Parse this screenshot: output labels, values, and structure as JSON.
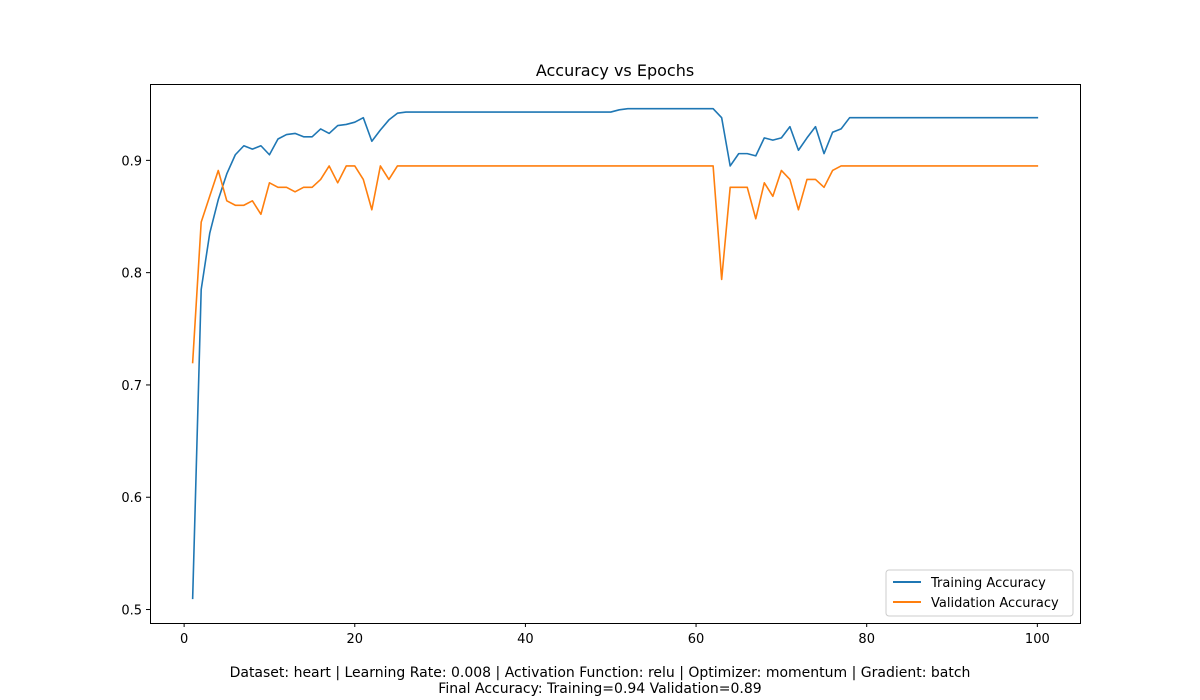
{
  "caption": {
    "line1": "Dataset: heart | Learning Rate: 0.008 | Activation Function: relu | Optimizer: momentum | Gradient: batch",
    "line2": "Final Accuracy: Training=0.94 Validation=0.89"
  },
  "chart_data": {
    "type": "line",
    "title": "Accuracy vs Epochs",
    "xlabel": "",
    "ylabel": "",
    "xlim": [
      -4,
      105
    ],
    "ylim": [
      0.488,
      0.968
    ],
    "xticks": [
      0,
      20,
      40,
      60,
      80,
      100
    ],
    "yticks": [
      0.5,
      0.6,
      0.7,
      0.8,
      0.9
    ],
    "grid": false,
    "legend_position": "lower-right",
    "x": [
      1,
      2,
      3,
      4,
      5,
      6,
      7,
      8,
      9,
      10,
      11,
      12,
      13,
      14,
      15,
      16,
      17,
      18,
      19,
      20,
      21,
      22,
      23,
      24,
      25,
      26,
      27,
      28,
      29,
      30,
      31,
      32,
      33,
      34,
      35,
      36,
      37,
      38,
      39,
      40,
      41,
      42,
      43,
      44,
      45,
      46,
      47,
      48,
      49,
      50,
      51,
      52,
      53,
      54,
      55,
      56,
      57,
      58,
      59,
      60,
      61,
      62,
      63,
      64,
      65,
      66,
      67,
      68,
      69,
      70,
      71,
      72,
      73,
      74,
      75,
      76,
      77,
      78,
      79,
      80,
      81,
      82,
      83,
      84,
      85,
      86,
      87,
      88,
      89,
      90,
      91,
      92,
      93,
      94,
      95,
      96,
      97,
      98,
      99,
      100
    ],
    "series": [
      {
        "name": "Training Accuracy",
        "color": "#1f77b4",
        "values": [
          0.51,
          0.785,
          0.835,
          0.865,
          0.888,
          0.905,
          0.913,
          0.91,
          0.913,
          0.905,
          0.919,
          0.923,
          0.924,
          0.921,
          0.921,
          0.928,
          0.924,
          0.931,
          0.932,
          0.934,
          0.938,
          0.917,
          0.927,
          0.936,
          0.942,
          0.943,
          0.943,
          0.943,
          0.943,
          0.943,
          0.943,
          0.943,
          0.943,
          0.943,
          0.943,
          0.943,
          0.943,
          0.943,
          0.943,
          0.943,
          0.943,
          0.943,
          0.943,
          0.943,
          0.943,
          0.943,
          0.943,
          0.943,
          0.943,
          0.943,
          0.945,
          0.946,
          0.946,
          0.946,
          0.946,
          0.946,
          0.946,
          0.946,
          0.946,
          0.946,
          0.946,
          0.946,
          0.938,
          0.895,
          0.906,
          0.906,
          0.904,
          0.92,
          0.918,
          0.92,
          0.93,
          0.909,
          0.92,
          0.93,
          0.906,
          0.925,
          0.928,
          0.938,
          0.938,
          0.938,
          0.938,
          0.938,
          0.938,
          0.938,
          0.938,
          0.938,
          0.938,
          0.938,
          0.938,
          0.938,
          0.938,
          0.938,
          0.938,
          0.938,
          0.938,
          0.938,
          0.938,
          0.938,
          0.938,
          0.938
        ]
      },
      {
        "name": "Validation Accuracy",
        "color": "#ff7f0e",
        "values": [
          0.72,
          0.845,
          0.868,
          0.891,
          0.864,
          0.86,
          0.86,
          0.864,
          0.852,
          0.88,
          0.876,
          0.876,
          0.872,
          0.876,
          0.876,
          0.883,
          0.895,
          0.88,
          0.895,
          0.895,
          0.883,
          0.856,
          0.895,
          0.883,
          0.895,
          0.895,
          0.895,
          0.895,
          0.895,
          0.895,
          0.895,
          0.895,
          0.895,
          0.895,
          0.895,
          0.895,
          0.895,
          0.895,
          0.895,
          0.895,
          0.895,
          0.895,
          0.895,
          0.895,
          0.895,
          0.895,
          0.895,
          0.895,
          0.895,
          0.895,
          0.895,
          0.895,
          0.895,
          0.895,
          0.895,
          0.895,
          0.895,
          0.895,
          0.895,
          0.895,
          0.895,
          0.895,
          0.794,
          0.876,
          0.876,
          0.876,
          0.848,
          0.88,
          0.868,
          0.891,
          0.883,
          0.856,
          0.883,
          0.883,
          0.876,
          0.891,
          0.895,
          0.895,
          0.895,
          0.895,
          0.895,
          0.895,
          0.895,
          0.895,
          0.895,
          0.895,
          0.895,
          0.895,
          0.895,
          0.895,
          0.895,
          0.895,
          0.895,
          0.895,
          0.895,
          0.895,
          0.895,
          0.895,
          0.895,
          0.895
        ]
      }
    ]
  }
}
